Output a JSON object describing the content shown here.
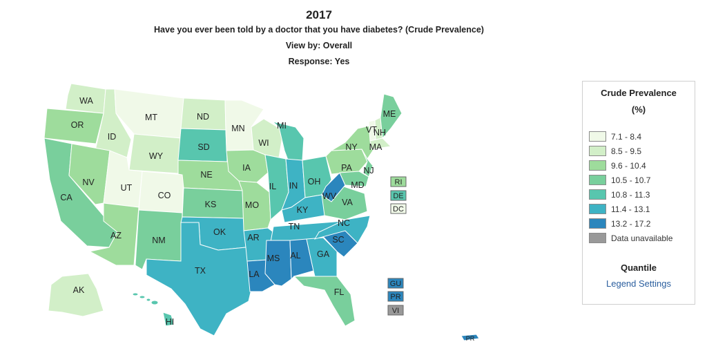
{
  "header": {
    "year": "2017",
    "question": "Have you ever been told by a doctor that you have diabetes? (Crude Prevalence)",
    "view_by": "View by: Overall",
    "response": "Response: Yes"
  },
  "legend": {
    "title_line1": "Crude Prevalence",
    "title_line2": "(%)",
    "classes": [
      {
        "label": "7.1 - 8.4",
        "color": "#f0f9e8"
      },
      {
        "label": "8.5 - 9.5",
        "color": "#d2efc8"
      },
      {
        "label": "9.6 - 10.4",
        "color": "#9edc9c"
      },
      {
        "label": "10.5 - 10.7",
        "color": "#79cf9c"
      },
      {
        "label": "10.8 - 11.3",
        "color": "#58c6ae"
      },
      {
        "label": "11.4 - 13.1",
        "color": "#3eb3c4"
      },
      {
        "label": "13.2 - 17.2",
        "color": "#2b86bd"
      },
      {
        "label": "Data unavailable",
        "color": "#999999"
      }
    ],
    "classification": "Quantile",
    "settings_link": "Legend Settings"
  },
  "map": {
    "states": [
      {
        "code": "WA",
        "bin": 1
      },
      {
        "code": "OR",
        "bin": 2
      },
      {
        "code": "CA",
        "bin": 3
      },
      {
        "code": "ID",
        "bin": 1
      },
      {
        "code": "NV",
        "bin": 2
      },
      {
        "code": "MT",
        "bin": 0
      },
      {
        "code": "WY",
        "bin": 1
      },
      {
        "code": "UT",
        "bin": 0
      },
      {
        "code": "CO",
        "bin": 0
      },
      {
        "code": "AZ",
        "bin": 2
      },
      {
        "code": "NM",
        "bin": 3
      },
      {
        "code": "ND",
        "bin": 1
      },
      {
        "code": "SD",
        "bin": 4
      },
      {
        "code": "NE",
        "bin": 2
      },
      {
        "code": "KS",
        "bin": 3
      },
      {
        "code": "OK",
        "bin": 5
      },
      {
        "code": "TX",
        "bin": 5
      },
      {
        "code": "MN",
        "bin": 0
      },
      {
        "code": "IA",
        "bin": 2
      },
      {
        "code": "MO",
        "bin": 2
      },
      {
        "code": "AR",
        "bin": 5
      },
      {
        "code": "LA",
        "bin": 6
      },
      {
        "code": "WI",
        "bin": 1
      },
      {
        "code": "IL",
        "bin": 4
      },
      {
        "code": "MI",
        "bin": 4
      },
      {
        "code": "IN",
        "bin": 5
      },
      {
        "code": "OH",
        "bin": 4
      },
      {
        "code": "KY",
        "bin": 5
      },
      {
        "code": "TN",
        "bin": 5
      },
      {
        "code": "MS",
        "bin": 6
      },
      {
        "code": "AL",
        "bin": 6
      },
      {
        "code": "GA",
        "bin": 5
      },
      {
        "code": "FL",
        "bin": 3
      },
      {
        "code": "SC",
        "bin": 6
      },
      {
        "code": "NC",
        "bin": 5
      },
      {
        "code": "VA",
        "bin": 3
      },
      {
        "code": "WV",
        "bin": 6
      },
      {
        "code": "PA",
        "bin": 2
      },
      {
        "code": "NY",
        "bin": 2
      },
      {
        "code": "NJ",
        "bin": 3
      },
      {
        "code": "MD",
        "bin": 3
      },
      {
        "code": "VT",
        "bin": 0
      },
      {
        "code": "NH",
        "bin": 1
      },
      {
        "code": "MA",
        "bin": 1
      },
      {
        "code": "ME",
        "bin": 3
      },
      {
        "code": "AK",
        "bin": 1
      },
      {
        "code": "HI",
        "bin": 4
      }
    ],
    "small_states": [
      {
        "code": "RI",
        "bin": 2
      },
      {
        "code": "DE",
        "bin": 4
      },
      {
        "code": "DC",
        "bin": 0
      }
    ],
    "territories": [
      {
        "code": "GU",
        "bin": 6
      },
      {
        "code": "PR",
        "bin": 6
      },
      {
        "code": "VI",
        "bin": 7
      }
    ],
    "pr_island_label": "PR"
  }
}
